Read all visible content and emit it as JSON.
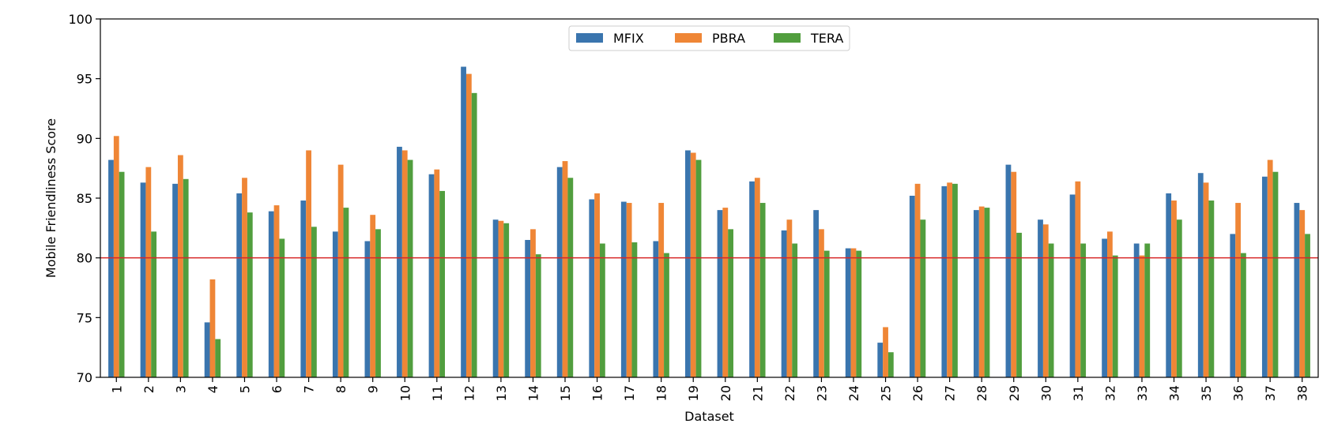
{
  "chart_data": {
    "type": "bar",
    "title": "",
    "xlabel": "Dataset",
    "ylabel": "Mobile Friendliness Score",
    "ylim": [
      70,
      100
    ],
    "yticks": [
      70,
      75,
      80,
      85,
      90,
      95,
      100
    ],
    "grid": false,
    "legend_position": "top-center",
    "categories": [
      "1",
      "2",
      "3",
      "4",
      "5",
      "6",
      "7",
      "8",
      "9",
      "10",
      "11",
      "12",
      "13",
      "14",
      "15",
      "16",
      "17",
      "18",
      "19",
      "20",
      "21",
      "22",
      "23",
      "24",
      "25",
      "26",
      "27",
      "28",
      "29",
      "30",
      "31",
      "32",
      "33",
      "34",
      "35",
      "36",
      "37",
      "38"
    ],
    "reference_line": {
      "y": 80,
      "color": "#d62728"
    },
    "series": [
      {
        "name": "MFIX",
        "color": "#3a75ae",
        "values": [
          88.2,
          86.3,
          86.2,
          74.6,
          85.4,
          83.9,
          84.8,
          82.2,
          81.4,
          89.3,
          87.0,
          96.0,
          83.2,
          81.5,
          87.6,
          84.9,
          84.7,
          81.4,
          89.0,
          84.0,
          86.4,
          82.3,
          84.0,
          80.8,
          72.9,
          85.2,
          86.0,
          84.0,
          87.8,
          83.2,
          85.3,
          81.6,
          81.2,
          85.4,
          87.1,
          82.0,
          86.8,
          84.6
        ]
      },
      {
        "name": "PBRA",
        "color": "#ef8636",
        "values": [
          90.2,
          87.6,
          88.6,
          78.2,
          86.7,
          84.4,
          89.0,
          87.8,
          83.6,
          89.0,
          87.4,
          95.4,
          83.1,
          82.4,
          88.1,
          85.4,
          84.6,
          84.6,
          88.8,
          84.2,
          86.7,
          83.2,
          82.4,
          80.8,
          74.2,
          86.2,
          86.3,
          84.3,
          87.2,
          82.8,
          86.4,
          82.2,
          80.2,
          84.8,
          86.3,
          84.6,
          88.2,
          84.0
        ]
      },
      {
        "name": "TERA",
        "color": "#519e3e",
        "values": [
          87.2,
          82.2,
          86.6,
          73.2,
          83.8,
          81.6,
          82.6,
          84.2,
          82.4,
          88.2,
          85.6,
          93.8,
          82.9,
          80.3,
          86.7,
          81.2,
          81.3,
          80.4,
          88.2,
          82.4,
          84.6,
          81.2,
          80.6,
          80.6,
          72.1,
          83.2,
          86.2,
          84.2,
          82.1,
          81.2,
          81.2,
          80.2,
          81.2,
          83.2,
          84.8,
          80.4,
          87.2,
          82.0
        ]
      }
    ]
  }
}
